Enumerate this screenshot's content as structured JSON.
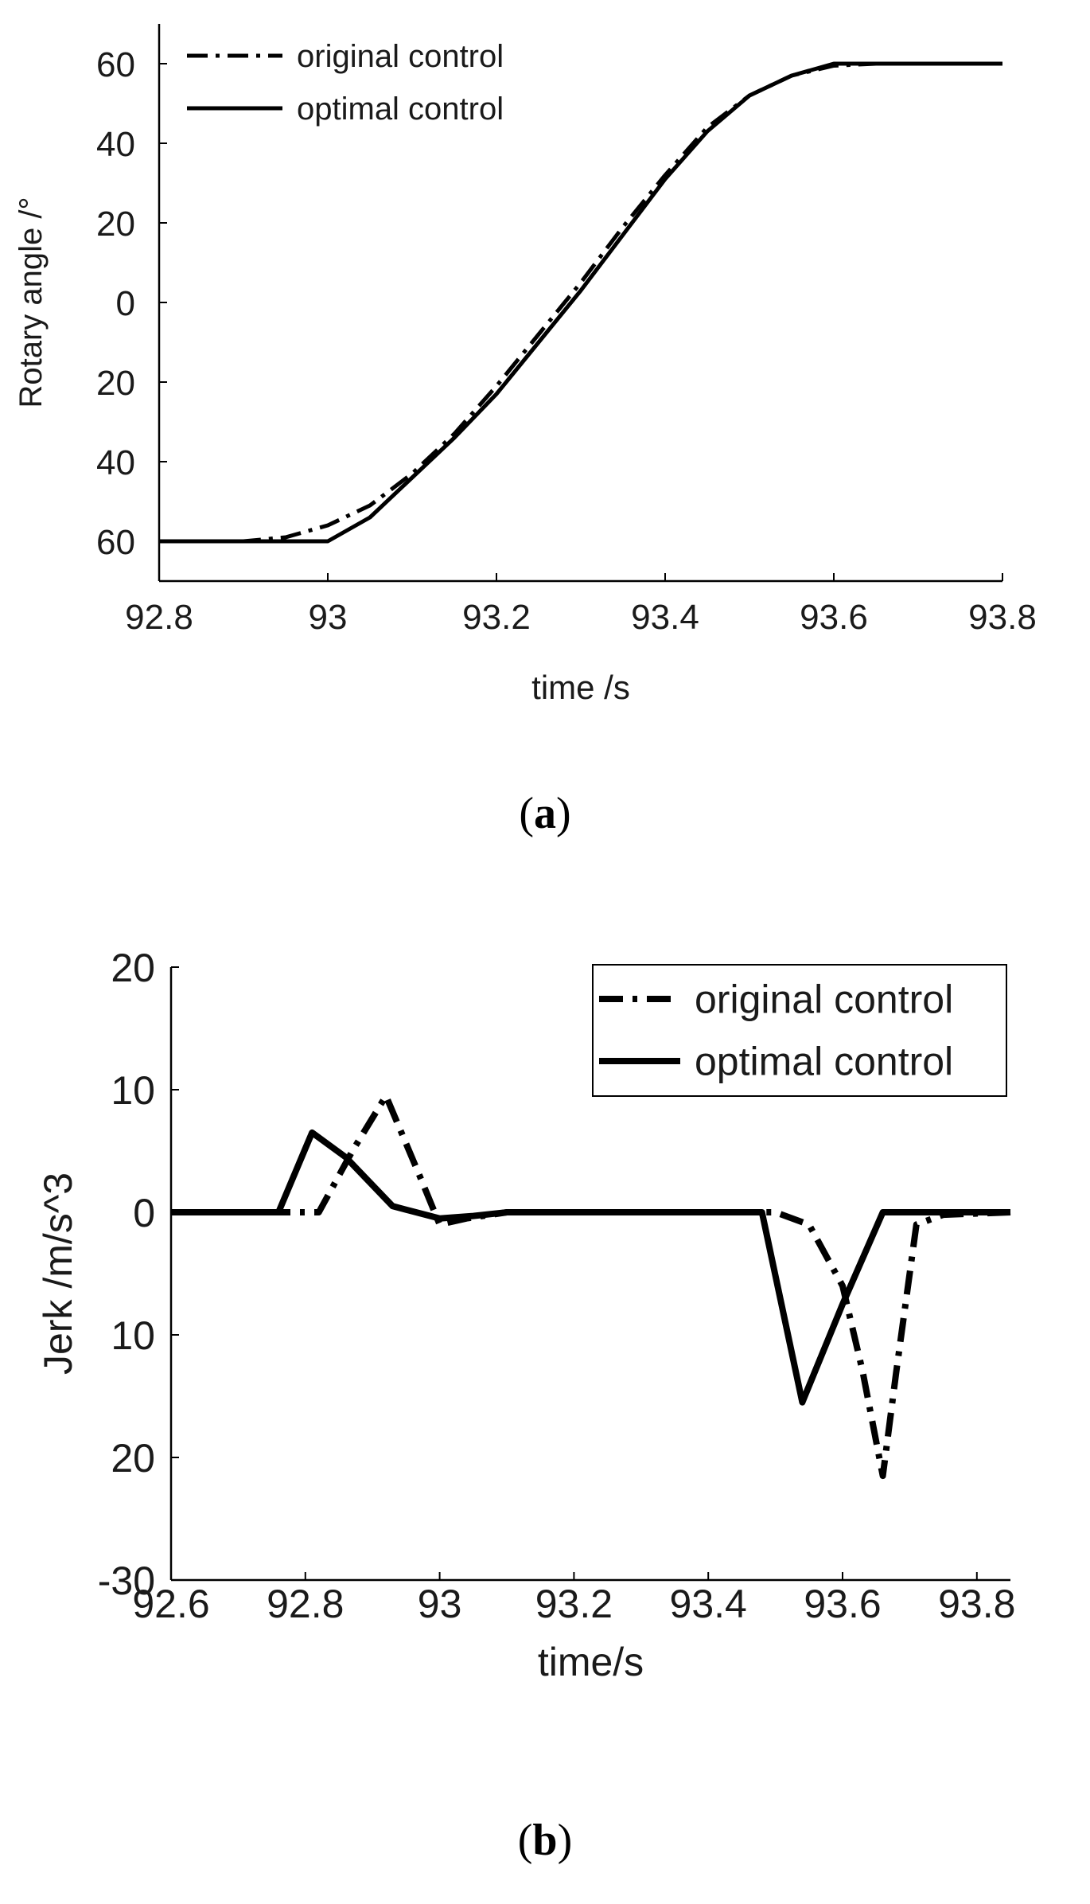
{
  "chart_data": [
    {
      "type": "line",
      "panel_label": "a",
      "xlabel": "time /s",
      "ylabel": "Rotary angle  /°",
      "xlim": [
        92.8,
        93.8
      ],
      "ylim": [
        -70,
        70
      ],
      "xticks": [
        92.8,
        93,
        93.2,
        93.4,
        93.6,
        93.8
      ],
      "xtick_labels": [
        "92.8",
        "93",
        "93.2",
        "93.4",
        "93.6",
        "93.8"
      ],
      "yticks": [
        -60,
        -40,
        -20,
        0,
        20,
        40,
        60
      ],
      "ytick_labels": [
        "60",
        "40",
        "20",
        "0",
        "20",
        "40",
        "60"
      ],
      "legend_position": "top-left",
      "series": [
        {
          "name": "original control",
          "style": "dashdot",
          "x": [
            92.8,
            92.9,
            92.95,
            93.0,
            93.05,
            93.1,
            93.15,
            93.2,
            93.25,
            93.3,
            93.35,
            93.4,
            93.45,
            93.5,
            93.55,
            93.6,
            93.65,
            93.7,
            93.8
          ],
          "y": [
            -60,
            -60,
            -59,
            -56,
            -51,
            -43,
            -33,
            -21,
            -8,
            5,
            19,
            32,
            44,
            52,
            57,
            59.5,
            60,
            60,
            60
          ]
        },
        {
          "name": "optimal control",
          "style": "solid",
          "x": [
            92.8,
            92.9,
            93.0,
            93.05,
            93.1,
            93.15,
            93.2,
            93.25,
            93.3,
            93.35,
            93.4,
            93.45,
            93.5,
            93.55,
            93.6,
            93.7,
            93.8
          ],
          "y": [
            -60,
            -60,
            -60,
            -54,
            -44,
            -34,
            -23,
            -10,
            3,
            17,
            31,
            43,
            52,
            57,
            60,
            60,
            60
          ]
        }
      ]
    },
    {
      "type": "line",
      "panel_label": "b",
      "xlabel": "time/s",
      "ylabel": "Jerk /m/s^3",
      "xlim": [
        92.6,
        93.85
      ],
      "ylim": [
        -30,
        20
      ],
      "xticks": [
        92.6,
        92.8,
        93,
        93.2,
        93.4,
        93.6,
        93.8
      ],
      "xtick_labels": [
        "92.6",
        "92.8",
        "93",
        "93.2",
        "93.4",
        "93.6",
        "93.8"
      ],
      "yticks": [
        -30,
        -20,
        -10,
        0,
        10,
        20
      ],
      "ytick_labels": [
        "-30",
        "20",
        "10",
        "0",
        "10",
        "20"
      ],
      "legend_position": "top-right",
      "series": [
        {
          "name": "original control",
          "style": "dashdot",
          "x": [
            92.6,
            92.82,
            92.87,
            92.92,
            92.97,
            93.0,
            93.04,
            93.1,
            93.2,
            93.5,
            93.55,
            93.6,
            93.63,
            93.66,
            93.68,
            93.71,
            93.75,
            93.85
          ],
          "y": [
            0,
            0,
            5,
            9.5,
            3,
            -1,
            -0.5,
            0,
            0,
            0,
            -1,
            -6,
            -13,
            -21.5,
            -13,
            -1,
            -0.2,
            0
          ]
        },
        {
          "name": "optimal control",
          "style": "solid",
          "x": [
            92.6,
            92.76,
            92.81,
            92.86,
            92.93,
            93.0,
            93.05,
            93.1,
            93.2,
            93.48,
            93.54,
            93.6,
            93.66,
            93.75,
            93.85
          ],
          "y": [
            0,
            0,
            6.5,
            4.5,
            0.5,
            -0.5,
            -0.3,
            0,
            0,
            0,
            -15.5,
            -7.5,
            0,
            0,
            0
          ]
        }
      ]
    }
  ],
  "captions": {
    "a": "a",
    "b": "b"
  },
  "paren_open": "(",
  "paren_close": ")"
}
